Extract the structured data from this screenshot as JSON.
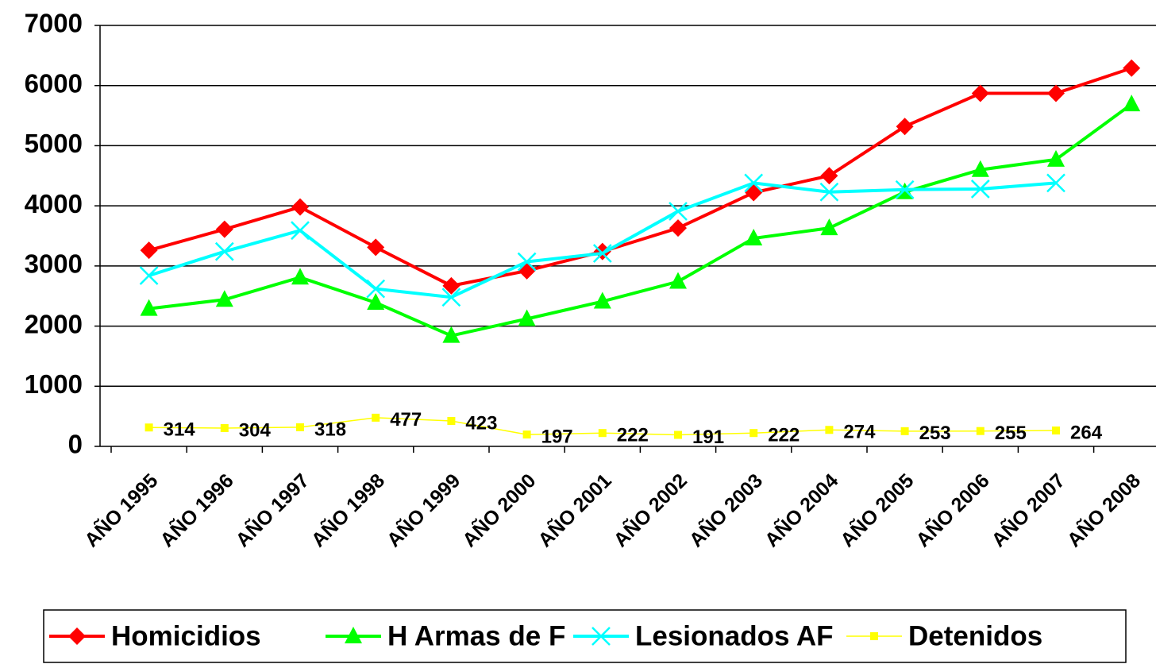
{
  "chart_data": {
    "type": "line",
    "categories": [
      "AÑO 1995",
      "AÑO 1996",
      "AÑO 1997",
      "AÑO 1998",
      "AÑO 1999",
      "AÑO 2000",
      "AÑO 2001",
      "AÑO 2002",
      "AÑO 2003",
      "AÑO 2004",
      "AÑO 2005",
      "AÑO 2006",
      "AÑO 2007",
      "AÑO 2008"
    ],
    "series": [
      {
        "name": "Homicidios",
        "color": "#ff0000",
        "marker": "diamond",
        "values": [
          3260,
          3610,
          3980,
          3310,
          2670,
          2920,
          3240,
          3630,
          4220,
          4500,
          5320,
          5870,
          5870,
          6290
        ]
      },
      {
        "name": "H Armas de F",
        "color": "#00ff00",
        "marker": "triangle",
        "values": [
          2290,
          2440,
          2810,
          2390,
          1840,
          2120,
          2410,
          2740,
          3460,
          3630,
          4230,
          4600,
          4770,
          5690
        ]
      },
      {
        "name": "Lesionados AF",
        "color": "#00ffff",
        "marker": "x",
        "values": [
          2840,
          3240,
          3590,
          2620,
          2480,
          3070,
          3210,
          3910,
          4380,
          4230,
          4270,
          4280,
          4380,
          null
        ]
      },
      {
        "name": "Detenidos",
        "color": "#ffff00",
        "marker": "square",
        "data_labels": true,
        "values": [
          314,
          304,
          318,
          477,
          423,
          197,
          222,
          191,
          222,
          274,
          253,
          255,
          264,
          null
        ]
      }
    ],
    "ylim": [
      0,
      7000
    ],
    "yticks": [
      0,
      1000,
      2000,
      3000,
      4000,
      5000,
      6000,
      7000
    ],
    "grid": true,
    "legend": "bottom"
  }
}
